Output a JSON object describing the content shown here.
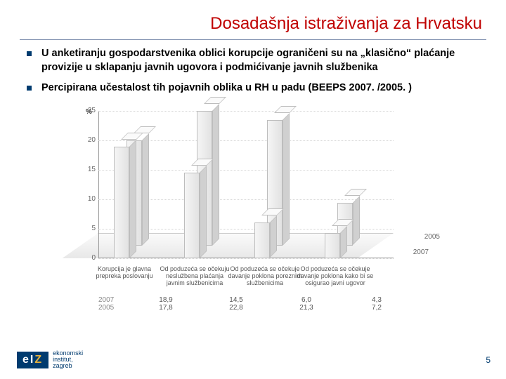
{
  "title": "Dosadašnja istraživanja za Hrvatsku",
  "bullets": [
    "U anketiranju gospodarstvenika oblici korupcije ograničeni su na „klasično“ plaćanje provizije u sklapanju javnih ugovora i podmićivanje javnih službenika",
    "Percipirana učestalost tih pojavnih oblika u RH u padu (BEEPS 2007. /2005. )"
  ],
  "chart": {
    "type": "bar-3d-grouped",
    "y_label": "%",
    "ylim": [
      0,
      25
    ],
    "yticks": [
      0,
      5,
      10,
      15,
      20,
      25
    ],
    "tick_fontsize": 10,
    "grid_color": "#d6d6d6",
    "axis_color": "#999999",
    "bar_fill_light": "#f5f5f5",
    "bar_fill_dark": "#e2e2e2",
    "bar_side": "#d0d0d0",
    "bar_border": "#bdbdbd",
    "background_color": "#ffffff",
    "series": [
      {
        "name": "2007",
        "position": "front"
      },
      {
        "name": "2005",
        "position": "back"
      }
    ],
    "z_labels": {
      "front": "2007",
      "back": "2005"
    },
    "categories": [
      "Korupcija je glavna prepreka poslovanju",
      "Od poduzeća se očekuju neslužbena plaćanja javnim službenicima",
      "Od poduzeća se očekuje davanje poklona poreznim službenicima",
      "Od poduzeća se očekuje davanje poklona kako bi se osigurao javni ugovor"
    ],
    "values_2007": [
      18.9,
      14.5,
      6.0,
      4.3
    ],
    "values_2005": [
      17.8,
      22.8,
      21.3,
      7.2
    ]
  },
  "table": {
    "row_headers": [
      "2007",
      "2005"
    ],
    "cells": [
      [
        "18,9",
        "14,5",
        "6,0",
        "4,3"
      ],
      [
        "17,8",
        "22,8",
        "21,3",
        "7,2"
      ]
    ]
  },
  "logo": {
    "badge_e": "e",
    "badge_i": "I",
    "badge_z": "Z",
    "line1": "ekonomski",
    "line2": "institut,",
    "line3": "zagreb"
  },
  "page_number": "5"
}
